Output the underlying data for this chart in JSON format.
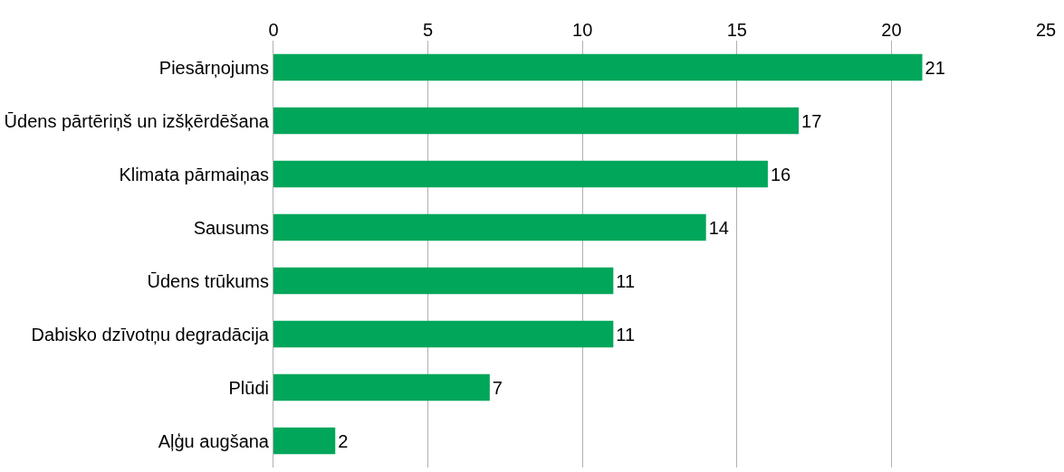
{
  "chart_data": {
    "type": "bar",
    "orientation": "horizontal",
    "categories": [
      "Piesārņojums",
      "Ūdens pārtēriņš un izšķērdēšana",
      "Klimata pārmaiņas",
      "Sausums",
      "Ūdens trūkums",
      "Dabisko dzīvotņu degradācija",
      "Plūdi",
      "Aļģu augšana"
    ],
    "values": [
      21,
      17,
      16,
      14,
      11,
      11,
      7,
      2
    ],
    "color": "#00a65a",
    "xlim": [
      0,
      25
    ],
    "xticks": [
      0,
      5,
      10,
      15,
      20,
      25
    ],
    "grid": "x",
    "data_labels": true,
    "legend": false
  }
}
